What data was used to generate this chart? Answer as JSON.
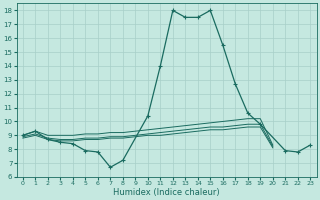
{
  "title": "",
  "xlabel": "Humidex (Indice chaleur)",
  "ylabel": "",
  "xlim": [
    -0.5,
    23.5
  ],
  "ylim": [
    6,
    18.5
  ],
  "yticks": [
    6,
    7,
    8,
    9,
    10,
    11,
    12,
    13,
    14,
    15,
    16,
    17,
    18
  ],
  "xticks": [
    0,
    1,
    2,
    3,
    4,
    5,
    6,
    7,
    8,
    9,
    10,
    11,
    12,
    13,
    14,
    15,
    16,
    17,
    18,
    19,
    20,
    21,
    22,
    23
  ],
  "background_color": "#c5e8e0",
  "grid_color": "#a8cfc8",
  "line_color": "#1a6b60",
  "line1_x": [
    0,
    1,
    2,
    3,
    4,
    5,
    6,
    7,
    8,
    10,
    11,
    12,
    13,
    14,
    15,
    16,
    17,
    18,
    19,
    21,
    22,
    23
  ],
  "line1_y": [
    9.0,
    9.3,
    8.7,
    8.5,
    8.4,
    7.9,
    7.8,
    6.7,
    7.2,
    10.4,
    14.0,
    18.0,
    17.5,
    17.5,
    18.0,
    15.5,
    12.7,
    10.6,
    9.8,
    7.9,
    7.8,
    8.3
  ],
  "line2_x": [
    0,
    1,
    2,
    3,
    4,
    5,
    6,
    7,
    8,
    9,
    10,
    11,
    12,
    13,
    14,
    15,
    16,
    17,
    18,
    19,
    20
  ],
  "line2_y": [
    9.0,
    9.3,
    9.0,
    9.0,
    9.0,
    9.1,
    9.1,
    9.2,
    9.2,
    9.3,
    9.4,
    9.5,
    9.6,
    9.7,
    9.8,
    9.9,
    10.0,
    10.1,
    10.2,
    10.2,
    8.3
  ],
  "line3_x": [
    0,
    1,
    2,
    3,
    4,
    5,
    6,
    7,
    8,
    9,
    10,
    11,
    12,
    13,
    14,
    15,
    16,
    17,
    18,
    19,
    20
  ],
  "line3_y": [
    8.9,
    9.1,
    8.8,
    8.7,
    8.7,
    8.8,
    8.8,
    8.9,
    8.9,
    9.0,
    9.1,
    9.2,
    9.3,
    9.4,
    9.5,
    9.6,
    9.6,
    9.7,
    9.8,
    9.8,
    8.2
  ],
  "line4_x": [
    0,
    1,
    2,
    3,
    4,
    5,
    6,
    7,
    8,
    9,
    10,
    11,
    12,
    13,
    14,
    15,
    16,
    17,
    18,
    19,
    20
  ],
  "line4_y": [
    8.8,
    9.0,
    8.7,
    8.6,
    8.6,
    8.7,
    8.7,
    8.8,
    8.8,
    8.9,
    9.0,
    9.0,
    9.1,
    9.2,
    9.3,
    9.4,
    9.4,
    9.5,
    9.6,
    9.6,
    8.1
  ]
}
